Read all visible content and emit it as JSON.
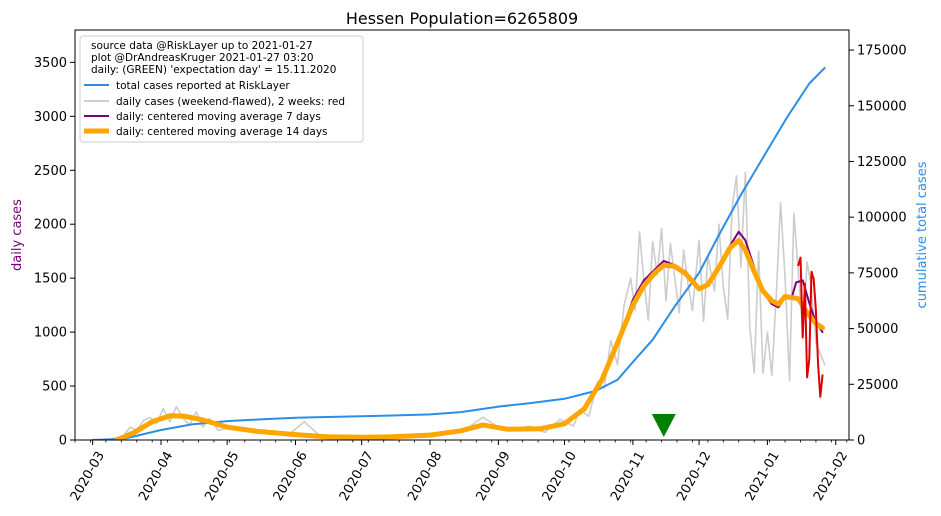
{
  "chart_data": {
    "type": "line",
    "title": "Hessen Population=6265809",
    "ylabel_left": "daily cases",
    "ylabel_right": "cumulative total cases",
    "ylim_left": [
      0,
      3800
    ],
    "ylim_right": [
      0,
      184000
    ],
    "yticks_left": [
      0,
      500,
      1000,
      1500,
      2000,
      2500,
      3000,
      3500
    ],
    "yticks_right": [
      0,
      25000,
      50000,
      75000,
      100000,
      125000,
      150000,
      175000
    ],
    "x_start": "2020-02-22",
    "x_end": "2021-02-07",
    "xtick_labels": [
      "2020-03",
      "2020-04",
      "2020-05",
      "2020-06",
      "2020-07",
      "2020-08",
      "2020-09",
      "2020-10",
      "2020-11",
      "2020-12",
      "2021-01",
      "2021-02"
    ],
    "xtick_dates": [
      "2020-03-01",
      "2020-04-01",
      "2020-05-01",
      "2020-06-01",
      "2020-07-01",
      "2020-08-01",
      "2020-09-01",
      "2020-10-01",
      "2020-11-01",
      "2020-12-01",
      "2021-01-01",
      "2021-02-01"
    ],
    "grid": false,
    "legend_position": "top-left",
    "annotation_lines": [
      "source data @RiskLayer up to 2021-01-27",
      "plot @DrAndreasKruger 2021-01-27 03:20",
      "daily: (GREEN) 'expectation day' = 15.11.2020"
    ],
    "expectation_day": "2020-11-15",
    "colors": {
      "total": "#2b8ee6",
      "daily_raw": "#cccccc",
      "daily_raw_last2w": "#dd0000",
      "ma7": "#7a0080",
      "ma14": "#ffa500",
      "marker": "#008000"
    },
    "series": [
      {
        "name": "total cases reported at RiskLayer",
        "axis": "right",
        "color": "#2b8ee6",
        "points": [
          [
            "2020-03-01",
            0
          ],
          [
            "2020-03-15",
            500
          ],
          [
            "2020-04-01",
            4500
          ],
          [
            "2020-04-15",
            7000
          ],
          [
            "2020-05-01",
            8500
          ],
          [
            "2020-05-15",
            9200
          ],
          [
            "2020-06-01",
            10000
          ],
          [
            "2020-06-15",
            10300
          ],
          [
            "2020-07-01",
            10700
          ],
          [
            "2020-07-15",
            11000
          ],
          [
            "2020-08-01",
            11500
          ],
          [
            "2020-08-15",
            12500
          ],
          [
            "2020-09-01",
            15000
          ],
          [
            "2020-09-15",
            16500
          ],
          [
            "2020-10-01",
            18500
          ],
          [
            "2020-10-15",
            22000
          ],
          [
            "2020-10-25",
            27000
          ],
          [
            "2020-11-01",
            35000
          ],
          [
            "2020-11-10",
            45000
          ],
          [
            "2020-11-20",
            60000
          ],
          [
            "2020-12-01",
            75000
          ],
          [
            "2020-12-10",
            92000
          ],
          [
            "2020-12-20",
            110000
          ],
          [
            "2021-01-01",
            130000
          ],
          [
            "2021-01-10",
            145000
          ],
          [
            "2021-01-20",
            160000
          ],
          [
            "2021-01-27",
            167000
          ]
        ]
      },
      {
        "name": "daily cases (weekend-flawed), 2 weeks: red",
        "axis": "left",
        "color": "#cccccc",
        "points": [
          [
            "2020-03-08",
            0
          ],
          [
            "2020-03-15",
            40
          ],
          [
            "2020-03-18",
            120
          ],
          [
            "2020-03-21",
            90
          ],
          [
            "2020-03-24",
            180
          ],
          [
            "2020-03-27",
            210
          ],
          [
            "2020-03-30",
            150
          ],
          [
            "2020-04-02",
            290
          ],
          [
            "2020-04-05",
            170
          ],
          [
            "2020-04-08",
            310
          ],
          [
            "2020-04-11",
            200
          ],
          [
            "2020-04-14",
            140
          ],
          [
            "2020-04-17",
            260
          ],
          [
            "2020-04-20",
            120
          ],
          [
            "2020-04-23",
            200
          ],
          [
            "2020-04-27",
            90
          ],
          [
            "2020-05-01",
            110
          ],
          [
            "2020-05-08",
            90
          ],
          [
            "2020-05-15",
            60
          ],
          [
            "2020-05-22",
            80
          ],
          [
            "2020-05-29",
            50
          ],
          [
            "2020-06-05",
            170
          ],
          [
            "2020-06-12",
            40
          ],
          [
            "2020-06-20",
            30
          ],
          [
            "2020-07-01",
            25
          ],
          [
            "2020-07-15",
            35
          ],
          [
            "2020-08-01",
            50
          ],
          [
            "2020-08-10",
            80
          ],
          [
            "2020-08-18",
            110
          ],
          [
            "2020-08-25",
            210
          ],
          [
            "2020-09-01",
            120
          ],
          [
            "2020-09-08",
            90
          ],
          [
            "2020-09-15",
            130
          ],
          [
            "2020-09-22",
            70
          ],
          [
            "2020-09-29",
            190
          ],
          [
            "2020-10-05",
            130
          ],
          [
            "2020-10-08",
            280
          ],
          [
            "2020-10-12",
            220
          ],
          [
            "2020-10-16",
            540
          ],
          [
            "2020-10-19",
            480
          ],
          [
            "2020-10-22",
            920
          ],
          [
            "2020-10-25",
            700
          ],
          [
            "2020-10-28",
            1250
          ],
          [
            "2020-10-31",
            1500
          ],
          [
            "2020-11-02",
            1200
          ],
          [
            "2020-11-04",
            1930
          ],
          [
            "2020-11-06",
            1480
          ],
          [
            "2020-11-08",
            1110
          ],
          [
            "2020-11-10",
            1840
          ],
          [
            "2020-11-12",
            1530
          ],
          [
            "2020-11-14",
            1960
          ],
          [
            "2020-11-16",
            1290
          ],
          [
            "2020-11-18",
            1820
          ],
          [
            "2020-11-20",
            1500
          ],
          [
            "2020-11-22",
            1180
          ],
          [
            "2020-11-24",
            1760
          ],
          [
            "2020-11-26",
            1450
          ],
          [
            "2020-11-28",
            1200
          ],
          [
            "2020-12-01",
            1850
          ],
          [
            "2020-12-03",
            1100
          ],
          [
            "2020-12-05",
            1700
          ],
          [
            "2020-12-08",
            1380
          ],
          [
            "2020-12-10",
            2000
          ],
          [
            "2020-12-12",
            1420
          ],
          [
            "2020-12-14",
            1120
          ],
          [
            "2020-12-16",
            2150
          ],
          [
            "2020-12-18",
            2450
          ],
          [
            "2020-12-20",
            1600
          ],
          [
            "2020-12-22",
            2480
          ],
          [
            "2020-12-24",
            1050
          ],
          [
            "2020-12-26",
            620
          ],
          [
            "2020-12-28",
            1750
          ],
          [
            "2020-12-30",
            620
          ],
          [
            "2021-01-01",
            1000
          ],
          [
            "2021-01-03",
            600
          ],
          [
            "2021-01-05",
            1330
          ],
          [
            "2021-01-07",
            2200
          ],
          [
            "2021-01-09",
            1500
          ],
          [
            "2021-01-11",
            550
          ],
          [
            "2021-01-13",
            2100
          ],
          [
            "2021-01-15",
            1560
          ],
          [
            "2021-01-17",
            1000
          ],
          [
            "2021-01-19",
            1650
          ],
          [
            "2021-01-21",
            1400
          ],
          [
            "2021-01-23",
            900
          ],
          [
            "2021-01-25",
            800
          ],
          [
            "2021-01-27",
            700
          ]
        ]
      },
      {
        "name": "daily: centered moving average 7 days",
        "axis": "left",
        "color": "#7a0080",
        "points": [
          [
            "2020-03-12",
            0
          ],
          [
            "2020-03-20",
            60
          ],
          [
            "2020-03-28",
            160
          ],
          [
            "2020-04-05",
            230
          ],
          [
            "2020-04-12",
            225
          ],
          [
            "2020-04-20",
            180
          ],
          [
            "2020-05-01",
            120
          ],
          [
            "2020-05-15",
            80
          ],
          [
            "2020-06-01",
            50
          ],
          [
            "2020-06-15",
            30
          ],
          [
            "2020-07-01",
            25
          ],
          [
            "2020-07-15",
            30
          ],
          [
            "2020-08-01",
            40
          ],
          [
            "2020-08-15",
            80
          ],
          [
            "2020-08-25",
            150
          ],
          [
            "2020-09-05",
            100
          ],
          [
            "2020-09-20",
            110
          ],
          [
            "2020-10-01",
            160
          ],
          [
            "2020-10-10",
            300
          ],
          [
            "2020-10-18",
            550
          ],
          [
            "2020-10-25",
            900
          ],
          [
            "2020-11-01",
            1300
          ],
          [
            "2020-11-06",
            1480
          ],
          [
            "2020-11-11",
            1580
          ],
          [
            "2020-11-15",
            1660
          ],
          [
            "2020-11-20",
            1620
          ],
          [
            "2020-11-25",
            1560
          ],
          [
            "2020-12-01",
            1410
          ],
          [
            "2020-12-05",
            1430
          ],
          [
            "2020-12-10",
            1600
          ],
          [
            "2020-12-15",
            1800
          ],
          [
            "2020-12-19",
            1930
          ],
          [
            "2020-12-22",
            1850
          ],
          [
            "2020-12-26",
            1600
          ],
          [
            "2020-12-30",
            1370
          ],
          [
            "2021-01-03",
            1260
          ],
          [
            "2021-01-06",
            1230
          ],
          [
            "2021-01-09",
            1320
          ],
          [
            "2021-01-12",
            1320
          ],
          [
            "2021-01-14",
            1460
          ],
          [
            "2021-01-17",
            1480
          ],
          [
            "2021-01-20",
            1270
          ],
          [
            "2021-01-23",
            1090
          ],
          [
            "2021-01-26",
            1000
          ]
        ]
      },
      {
        "name": "daily: centered moving average 14 days",
        "axis": "left",
        "color": "#ffa500",
        "points": [
          [
            "2020-03-12",
            0
          ],
          [
            "2020-03-20",
            70
          ],
          [
            "2020-03-28",
            170
          ],
          [
            "2020-04-05",
            225
          ],
          [
            "2020-04-12",
            220
          ],
          [
            "2020-04-20",
            185
          ],
          [
            "2020-05-01",
            120
          ],
          [
            "2020-05-15",
            80
          ],
          [
            "2020-06-01",
            50
          ],
          [
            "2020-06-15",
            30
          ],
          [
            "2020-07-01",
            25
          ],
          [
            "2020-07-15",
            30
          ],
          [
            "2020-08-01",
            45
          ],
          [
            "2020-08-15",
            85
          ],
          [
            "2020-08-25",
            140
          ],
          [
            "2020-09-05",
            100
          ],
          [
            "2020-09-20",
            105
          ],
          [
            "2020-10-01",
            150
          ],
          [
            "2020-10-10",
            290
          ],
          [
            "2020-10-18",
            560
          ],
          [
            "2020-10-25",
            900
          ],
          [
            "2020-11-01",
            1250
          ],
          [
            "2020-11-06",
            1430
          ],
          [
            "2020-11-11",
            1550
          ],
          [
            "2020-11-15",
            1620
          ],
          [
            "2020-11-20",
            1610
          ],
          [
            "2020-11-25",
            1540
          ],
          [
            "2020-12-01",
            1400
          ],
          [
            "2020-12-05",
            1440
          ],
          [
            "2020-12-10",
            1600
          ],
          [
            "2020-12-15",
            1780
          ],
          [
            "2020-12-19",
            1850
          ],
          [
            "2020-12-22",
            1760
          ],
          [
            "2020-12-26",
            1560
          ],
          [
            "2020-12-30",
            1380
          ],
          [
            "2021-01-03",
            1290
          ],
          [
            "2021-01-06",
            1260
          ],
          [
            "2021-01-09",
            1330
          ],
          [
            "2021-01-12",
            1320
          ],
          [
            "2021-01-15",
            1310
          ],
          [
            "2021-01-19",
            1180
          ],
          [
            "2021-01-23",
            1080
          ],
          [
            "2021-01-26",
            1040
          ]
        ]
      },
      {
        "name": "daily cases, last 2 weeks",
        "axis": "left",
        "color": "#dd0000",
        "points": [
          [
            "2021-01-15",
            1620
          ],
          [
            "2021-01-16",
            1690
          ],
          [
            "2021-01-17",
            950
          ],
          [
            "2021-01-18",
            1450
          ],
          [
            "2021-01-19",
            580
          ],
          [
            "2021-01-20",
            750
          ],
          [
            "2021-01-21",
            1560
          ],
          [
            "2021-01-22",
            1490
          ],
          [
            "2021-01-23",
            1200
          ],
          [
            "2021-01-24",
            700
          ],
          [
            "2021-01-25",
            400
          ],
          [
            "2021-01-26",
            600
          ]
        ]
      }
    ]
  },
  "legend": {
    "items": [
      {
        "label": "total cases reported at RiskLayer",
        "color": "#2b8ee6",
        "width": 2
      },
      {
        "label": "daily cases (weekend-flawed), 2 weeks: red",
        "color": "#cccccc",
        "width": 2
      },
      {
        "label": "daily: centered moving average 7 days",
        "color": "#7a0080",
        "width": 2
      },
      {
        "label": "daily: centered moving average 14 days",
        "color": "#ffa500",
        "width": 5
      }
    ]
  }
}
